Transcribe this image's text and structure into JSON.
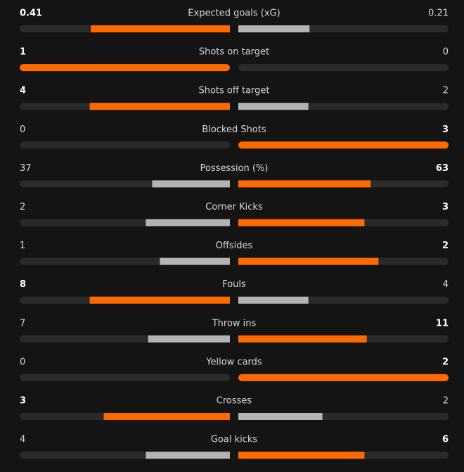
{
  "stats": [
    {
      "label": "Expected goals (xG)",
      "home": 0.41,
      "away": 0.21
    },
    {
      "label": "Shots on target",
      "home": 1,
      "away": 0
    },
    {
      "label": "Shots off target",
      "home": 4,
      "away": 2
    },
    {
      "label": "Blocked Shots",
      "home": 0,
      "away": 3
    },
    {
      "label": "Possession (%)",
      "home": 37,
      "away": 63
    },
    {
      "label": "Corner Kicks",
      "home": 2,
      "away": 3
    },
    {
      "label": "Offsides",
      "home": 1,
      "away": 2
    },
    {
      "label": "Fouls",
      "home": 8,
      "away": 4
    },
    {
      "label": "Throw ins",
      "home": 7,
      "away": 11
    },
    {
      "label": "Yellow cards",
      "home": 0,
      "away": 2
    },
    {
      "label": "Crosses",
      "home": 3,
      "away": 2
    },
    {
      "label": "Goal kicks",
      "home": 4,
      "away": 6
    }
  ]
}
